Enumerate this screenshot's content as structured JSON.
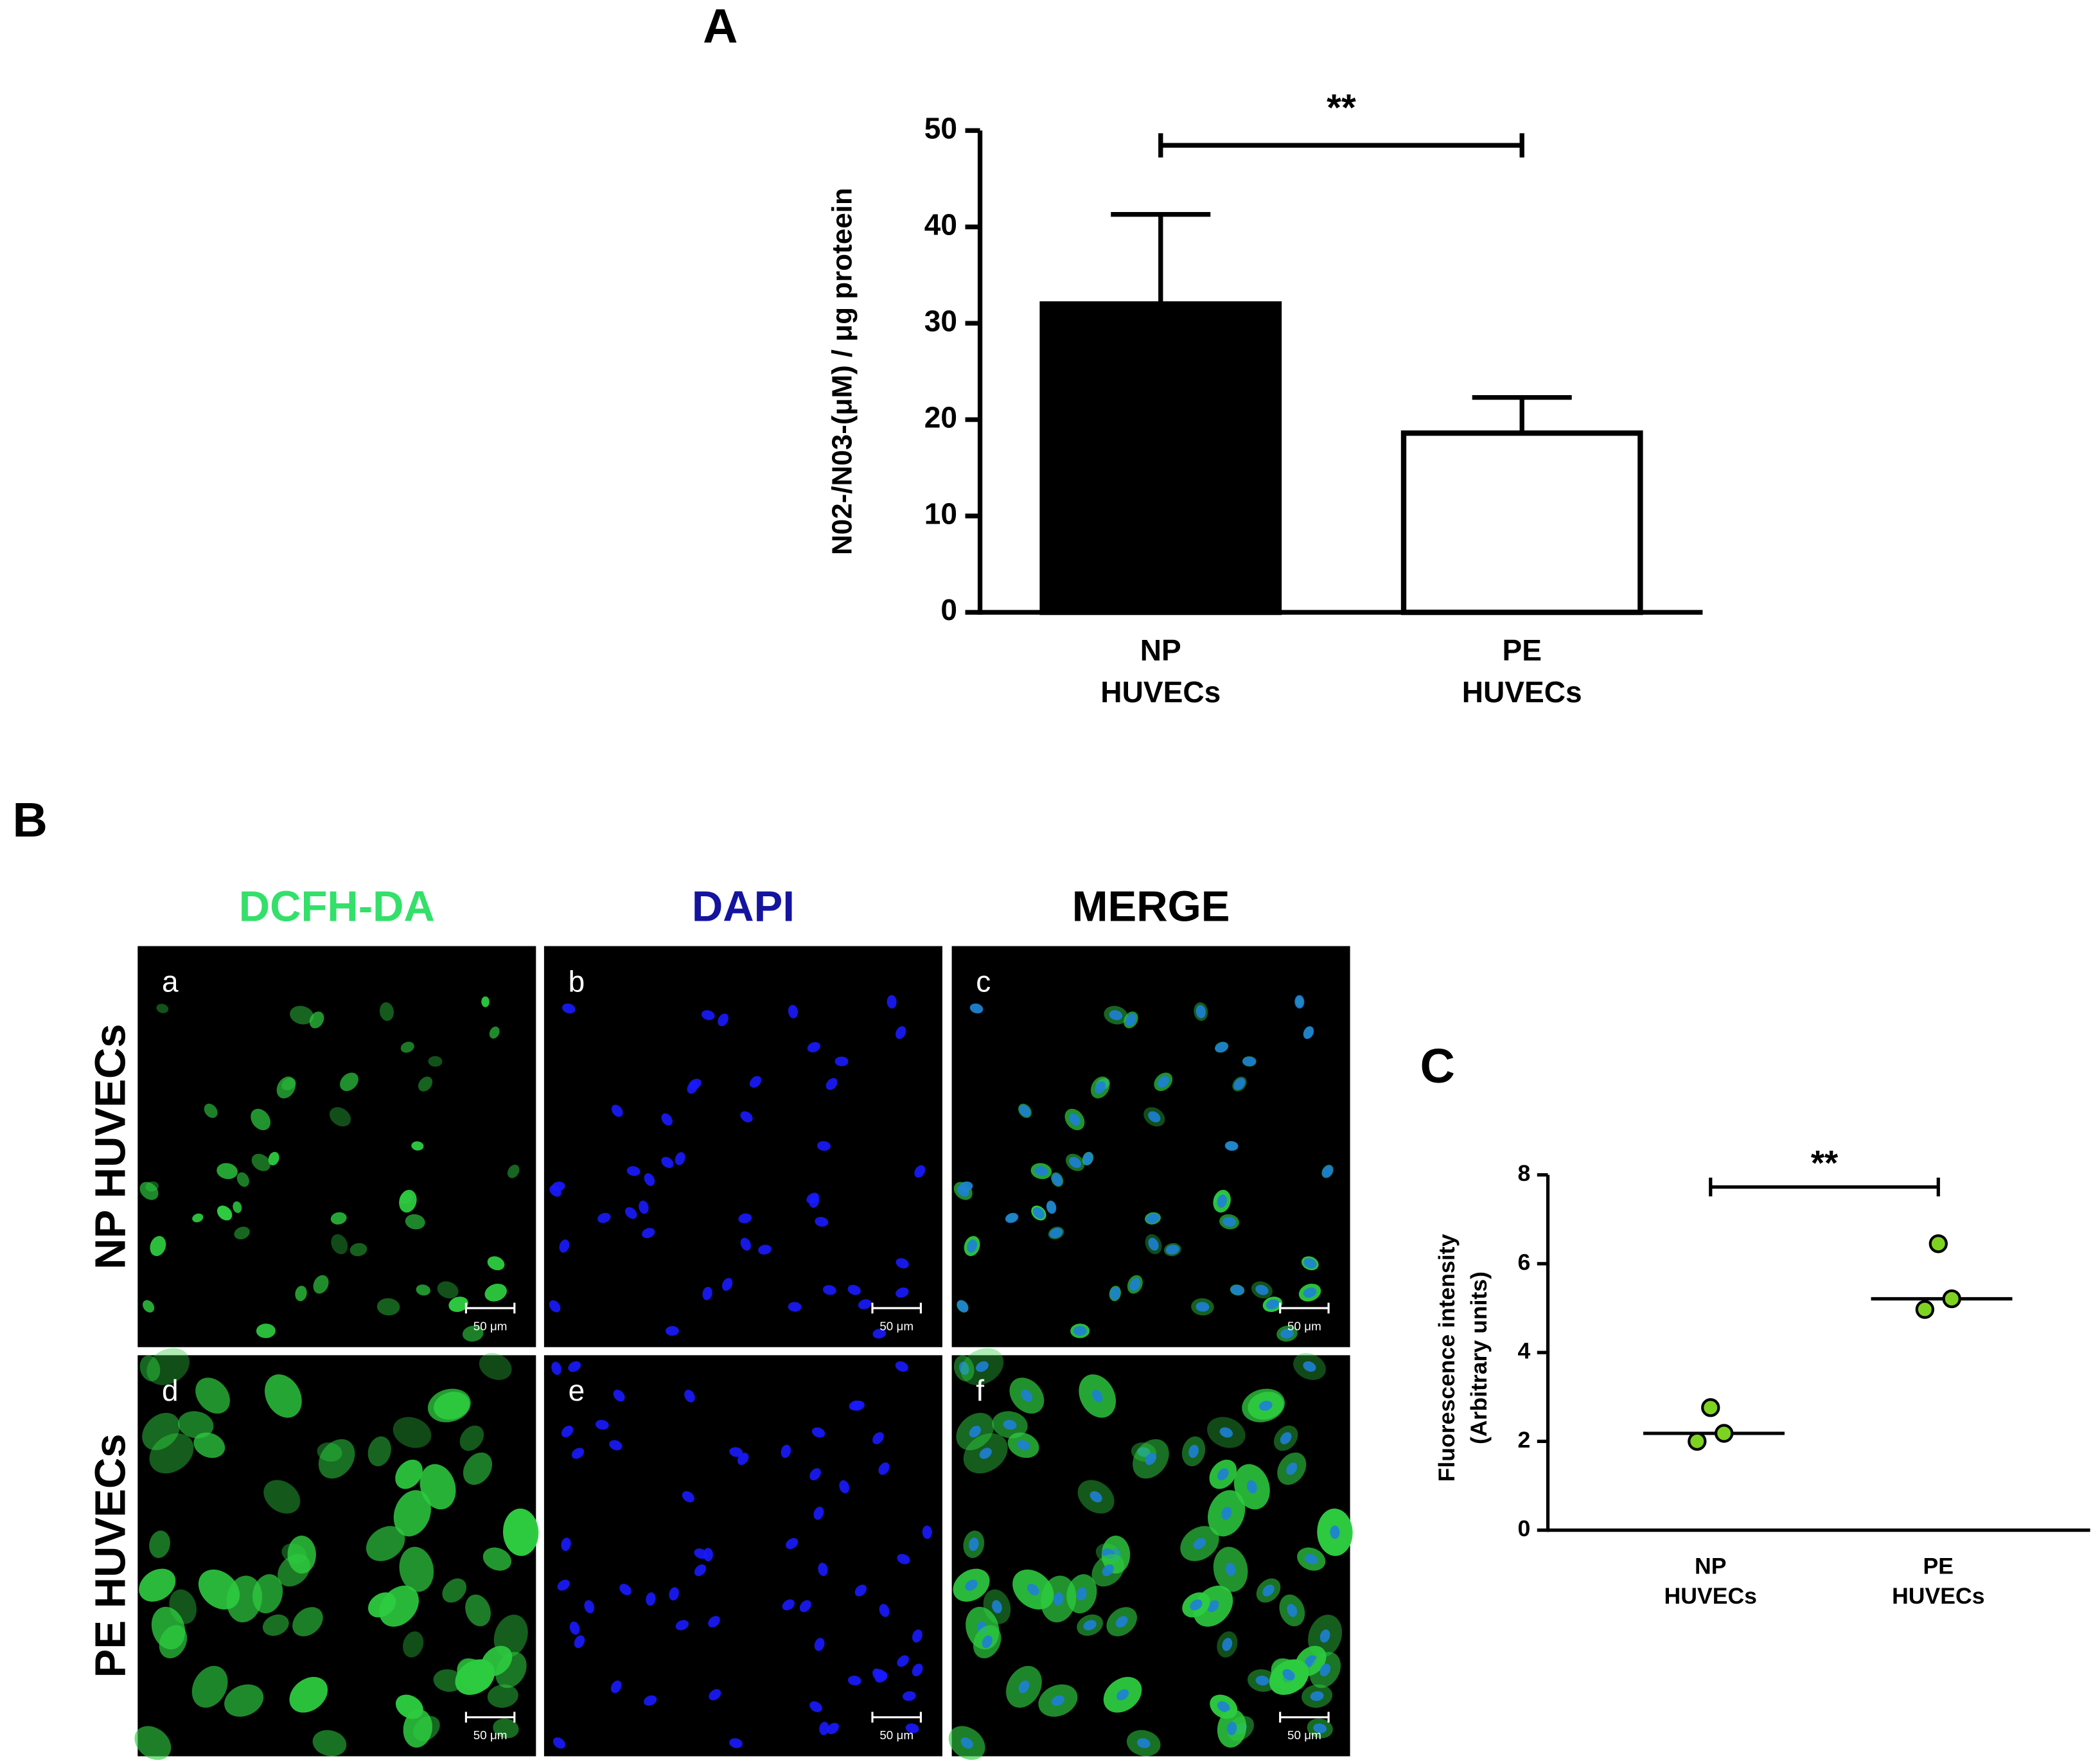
{
  "chart_data": [
    {
      "type": "bar",
      "panel_label": "A",
      "y_label": "N02-/N03-(μM) / μg proteein",
      "categories": [
        [
          "NP",
          "HUVECs"
        ],
        [
          "PE",
          "HUVECs"
        ]
      ],
      "values": [
        32.0,
        18.6
      ],
      "errors": [
        9.3,
        3.7
      ],
      "colors": [
        "#000000",
        "#ffffff"
      ],
      "ylim": [
        0,
        50
      ],
      "yticks": [
        0,
        10,
        20,
        30,
        40,
        50
      ],
      "significance": "**"
    },
    {
      "type": "strip",
      "panel_label": "C",
      "y_label": [
        "Fluorescence intensity",
        "(Arbitrary units)"
      ],
      "categories": [
        [
          "NP",
          "HUVECs"
        ],
        [
          "PE",
          "HUVECs"
        ]
      ],
      "values": [
        [
          2.0,
          2.76,
          2.18
        ],
        [
          4.97,
          6.45,
          5.21
        ]
      ],
      "medians": [
        2.18,
        5.21
      ],
      "color": "#7ed321",
      "ylim": [
        0,
        8
      ],
      "yticks": [
        0,
        2,
        4,
        6,
        8
      ],
      "significance": "**"
    }
  ],
  "panel_b": {
    "label": "B",
    "columns": [
      {
        "name": "DCFH-DA",
        "color": "#33e06a"
      },
      {
        "name": "DAPI",
        "color": "#1414a0"
      },
      {
        "name": "MERGE",
        "color": "#000000"
      }
    ],
    "rows": [
      "NP HUVECs",
      "PE HUVECs"
    ],
    "images": [
      [
        "a",
        "b",
        "c"
      ],
      [
        "d",
        "e",
        "f"
      ]
    ],
    "scale_bar": "50 μm"
  }
}
